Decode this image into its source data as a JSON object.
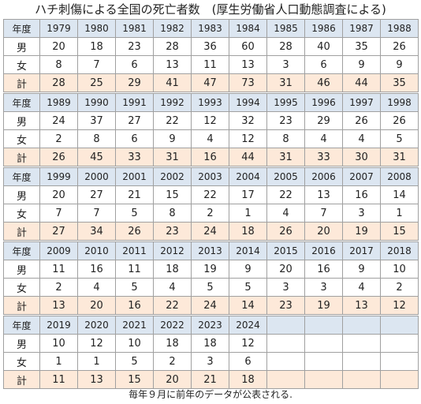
{
  "title": "ハチ刺傷による全国の死亡者数　(厚生労働省人口動態調査による)",
  "row_labels": {
    "year": "年度",
    "male": "男",
    "female": "女",
    "total": "計"
  },
  "blocks": [
    {
      "years": [
        "1979",
        "1980",
        "1981",
        "1982",
        "1983",
        "1984",
        "1985",
        "1986",
        "1987",
        "1988"
      ],
      "male": [
        "20",
        "18",
        "23",
        "28",
        "36",
        "60",
        "28",
        "40",
        "35",
        "26"
      ],
      "female": [
        "8",
        "7",
        "6",
        "13",
        "11",
        "13",
        "3",
        "6",
        "9",
        "9"
      ],
      "total": [
        "28",
        "25",
        "29",
        "41",
        "47",
        "73",
        "31",
        "46",
        "44",
        "35"
      ]
    },
    {
      "years": [
        "1989",
        "1990",
        "1991",
        "1992",
        "1993",
        "1994",
        "1995",
        "1996",
        "1997",
        "1998"
      ],
      "male": [
        "24",
        "37",
        "27",
        "22",
        "12",
        "32",
        "23",
        "29",
        "26",
        "26"
      ],
      "female": [
        "2",
        "8",
        "6",
        "9",
        "4",
        "12",
        "8",
        "4",
        "4",
        "5"
      ],
      "total": [
        "26",
        "45",
        "33",
        "31",
        "16",
        "44",
        "31",
        "33",
        "30",
        "31"
      ]
    },
    {
      "years": [
        "1999",
        "2000",
        "2001",
        "2002",
        "2003",
        "2004",
        "2005",
        "2006",
        "2007",
        "2008"
      ],
      "male": [
        "20",
        "27",
        "21",
        "15",
        "22",
        "17",
        "22",
        "13",
        "16",
        "14"
      ],
      "female": [
        "7",
        "7",
        "5",
        "8",
        "2",
        "1",
        "4",
        "7",
        "3",
        "1"
      ],
      "total": [
        "27",
        "34",
        "26",
        "23",
        "24",
        "18",
        "26",
        "20",
        "19",
        "15"
      ]
    },
    {
      "years": [
        "2009",
        "2010",
        "2011",
        "2012",
        "2013",
        "2014",
        "2015",
        "2016",
        "2017",
        "2018"
      ],
      "male": [
        "11",
        "16",
        "11",
        "18",
        "19",
        "9",
        "20",
        "16",
        "9",
        "10"
      ],
      "female": [
        "2",
        "4",
        "5",
        "4",
        "5",
        "5",
        "3",
        "3",
        "4",
        "2"
      ],
      "total": [
        "13",
        "20",
        "16",
        "22",
        "24",
        "14",
        "23",
        "19",
        "13",
        "12"
      ]
    },
    {
      "years": [
        "2019",
        "2020",
        "2021",
        "2022",
        "2023",
        "2024",
        "",
        "",
        "",
        ""
      ],
      "male": [
        "10",
        "12",
        "10",
        "18",
        "18",
        "12",
        "",
        "",
        "",
        ""
      ],
      "female": [
        "1",
        "1",
        "5",
        "2",
        "3",
        "6",
        "",
        "",
        "",
        ""
      ],
      "total": [
        "11",
        "13",
        "15",
        "20",
        "21",
        "18",
        "",
        "",
        "",
        ""
      ]
    }
  ],
  "footer": "毎年９月に前年のデータが公表される."
}
